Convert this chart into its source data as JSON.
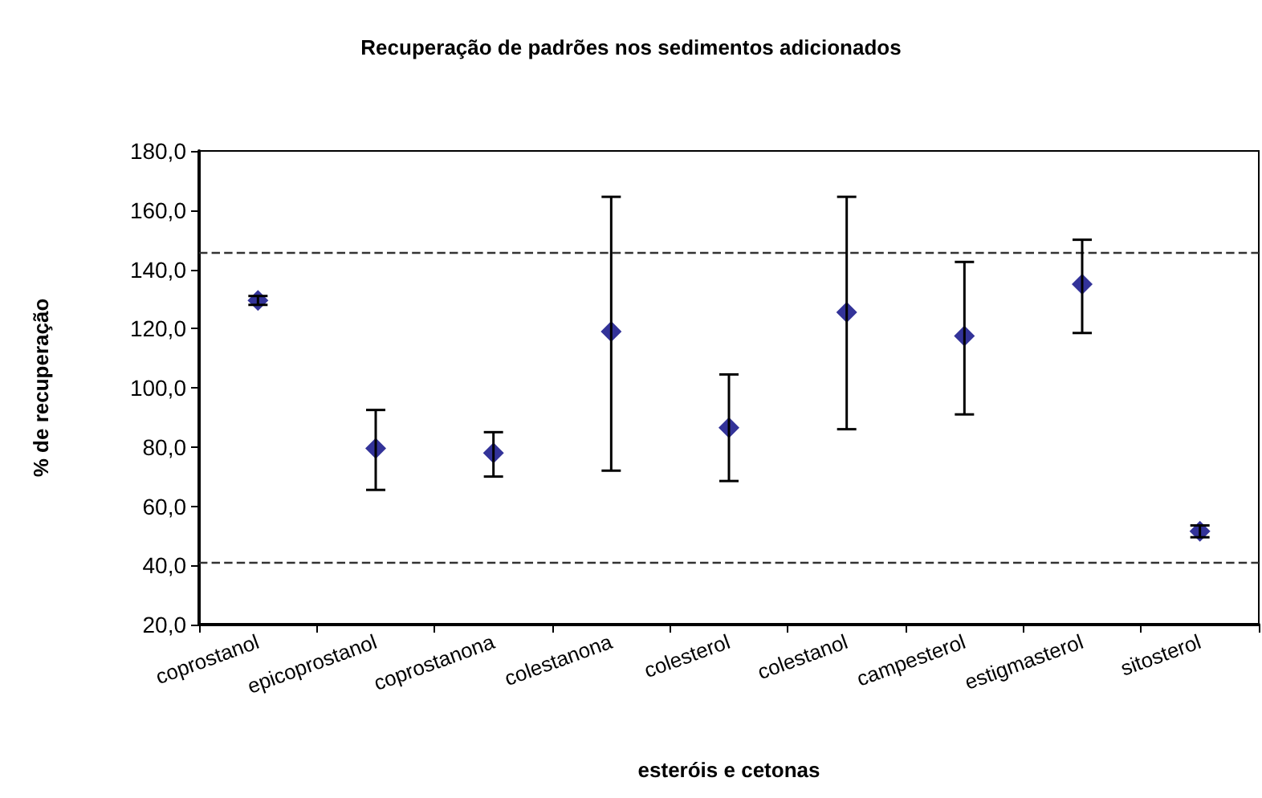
{
  "chart_data": {
    "type": "scatter",
    "title": "Recuperação de padrões nos sedimentos adicionados",
    "xlabel": "esteróis e cetonas",
    "ylabel": "% de recuperação",
    "categories": [
      "coprostanol",
      "epicoprostanol",
      "coprostanona",
      "colestanona",
      "colesterol",
      "colestanol",
      "campesterol",
      "estigmasterol",
      "sitosterol"
    ],
    "series": [
      {
        "color": "#000080",
        "values": [
          129.5,
          79.5,
          78,
          119,
          86.5,
          125.5,
          117.5,
          135,
          51.5
        ],
        "errors": [
          [
            128,
            131
          ],
          [
            65.5,
            92.5
          ],
          [
            70,
            85
          ],
          [
            72,
            164.5
          ],
          [
            68.5,
            104.5
          ],
          [
            86,
            164.5
          ],
          [
            91,
            142.5
          ],
          [
            118.5,
            150
          ],
          [
            49.5,
            53.5
          ]
        ]
      }
    ],
    "ylim": [
      20,
      180
    ],
    "yticks": [
      {
        "value": 20,
        "label": "20,0"
      },
      {
        "value": 40,
        "label": "40,0"
      },
      {
        "value": 60,
        "label": "60,0"
      },
      {
        "value": 80,
        "label": "80,0"
      },
      {
        "value": 100,
        "label": "100,0"
      },
      {
        "value": 120,
        "label": "120,0"
      },
      {
        "value": 140,
        "label": "140,0"
      },
      {
        "value": 160,
        "label": "160,0"
      },
      {
        "value": 180,
        "label": "180,0"
      }
    ],
    "ref_lines": [
      {
        "axis": "y",
        "value": 145.5,
        "line_style": "dashed",
        "color": "#333333"
      },
      {
        "axis": "y",
        "value": 41,
        "line_style": "dashed",
        "color": "#333333"
      }
    ],
    "marker": "diamond",
    "grid": false
  }
}
